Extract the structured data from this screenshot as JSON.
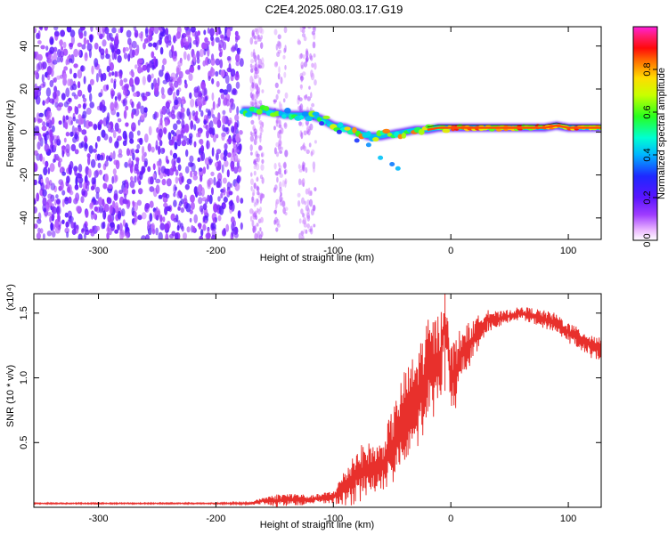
{
  "figure_title": "C2E4.2025.080.03.17.G19",
  "colors": {
    "background": "#ffffff",
    "snr_line": "#e8302c",
    "spectrogram_noise": "#7a1ee6",
    "frame": "#000000"
  },
  "chart_data": [
    {
      "type": "heatmap",
      "title": "C2E4.2025.080.03.17.G19",
      "xlabel": "Height of straight line (km)",
      "ylabel": "Frequency (Hz)",
      "xlim": [
        -355,
        128
      ],
      "ylim": [
        -50,
        49
      ],
      "xticks": [
        -300,
        -200,
        -100,
        0,
        100
      ],
      "yticks": [
        -40,
        -20,
        0,
        20,
        40
      ],
      "grid": false,
      "colorbar": {
        "label": "Normalized spectral amplitude",
        "range": [
          0,
          1
        ],
        "ticks": [
          "0.0",
          "0.2",
          "0.4",
          "0.6",
          "0.8"
        ],
        "ticks_values": [
          0,
          0.2,
          0.4,
          0.6,
          0.8
        ],
        "colormap": "rainbow (magenta-blue-cyan-green-yellow-red-magenta)"
      },
      "ridge": {
        "x": [
          -178,
          -160,
          -140,
          -120,
          -110,
          -100,
          -90,
          -80,
          -70,
          -60,
          -50,
          -40,
          -30,
          -20,
          -10,
          0,
          20,
          40,
          60,
          80,
          90,
          100,
          110,
          128
        ],
        "y": [
          10,
          10,
          8,
          8,
          6,
          3,
          2,
          0,
          -2,
          -2,
          -1,
          0,
          1,
          1,
          2,
          2,
          2,
          2,
          2,
          2,
          3,
          2,
          2,
          2
        ]
      },
      "noise_region_x": [
        -355,
        -178
      ],
      "secondary_track": {
        "x": [
          -110,
          -95,
          -80,
          -70,
          -60,
          -50,
          -45
        ],
        "y": [
          4,
          0,
          -4,
          -6,
          -12,
          -15,
          -17
        ]
      }
    },
    {
      "type": "line",
      "title": "",
      "xlabel": "Height of straight line (km)",
      "ylabel": "SNR (10 * v/v)",
      "y_multiplier": "(x10⁴)",
      "xlim": [
        -355,
        128
      ],
      "ylim": [
        0,
        1.65
      ],
      "xticks": [
        -300,
        -200,
        -100,
        0,
        100
      ],
      "yticks": [
        0.5,
        1.0,
        1.5
      ],
      "ytick_labels": [
        "0.5",
        "1.0",
        "1.5"
      ],
      "grid": false,
      "series": [
        {
          "x": [
            -355,
            -300,
            -250,
            -200,
            -170,
            -160,
            -150,
            -140,
            -130,
            -120,
            -110,
            -100,
            -90,
            -80,
            -70,
            -60,
            -50,
            -40,
            -30,
            -20,
            -10,
            -5,
            0,
            5,
            10,
            20,
            30,
            40,
            50,
            60,
            70,
            80,
            90,
            100,
            110,
            120,
            128
          ],
          "values": [
            0.03,
            0.03,
            0.03,
            0.03,
            0.03,
            0.05,
            0.05,
            0.06,
            0.06,
            0.06,
            0.07,
            0.08,
            0.15,
            0.25,
            0.3,
            0.3,
            0.45,
            0.7,
            0.8,
            1.05,
            1.1,
            1.45,
            1.0,
            1.05,
            1.2,
            1.3,
            1.45,
            1.45,
            1.48,
            1.5,
            1.48,
            1.45,
            1.42,
            1.35,
            1.3,
            1.25,
            1.22
          ],
          "peak_to_peak": [
            0.01,
            0.01,
            0.01,
            0.01,
            0.02,
            0.06,
            0.1,
            0.1,
            0.1,
            0.06,
            0.08,
            0.1,
            0.3,
            0.45,
            0.4,
            0.4,
            0.6,
            0.7,
            0.8,
            0.8,
            0.8,
            0.4,
            0.5,
            0.6,
            0.4,
            0.3,
            0.2,
            0.12,
            0.1,
            0.1,
            0.12,
            0.14,
            0.16,
            0.16,
            0.16,
            0.2,
            0.2
          ],
          "peak_x": -5,
          "peak_y": 1.65
        }
      ]
    }
  ]
}
